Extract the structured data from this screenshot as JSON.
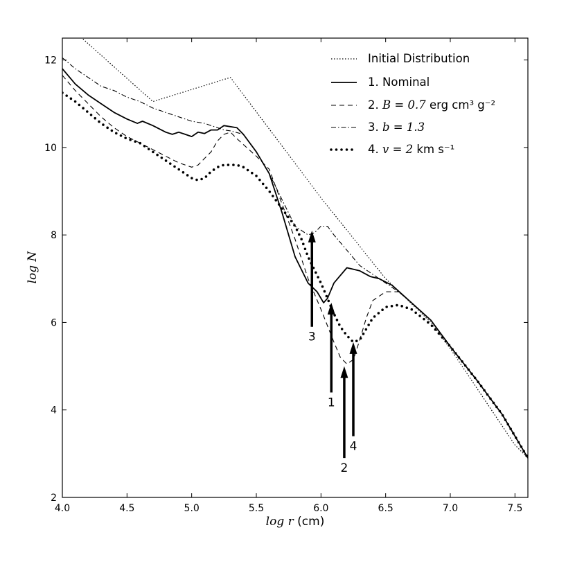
{
  "chart_data": {
    "type": "line",
    "title": "",
    "xlabel": "log r (cm)",
    "ylabel": "log N",
    "xlim": [
      4.0,
      7.6
    ],
    "ylim": [
      2,
      12.5
    ],
    "xticks": [
      "4.0",
      "4.5",
      "5.0",
      "5.5",
      "6.0",
      "6.5",
      "7.0",
      "7.5"
    ],
    "yticks": [
      "2",
      "4",
      "6",
      "8",
      "10",
      "12"
    ],
    "grid": false,
    "legend_position": "top-right",
    "series": [
      {
        "name": "Initial Distribution",
        "style": "dotted",
        "points": [
          [
            4.0,
            12.9
          ],
          [
            4.7,
            11.05
          ],
          [
            5.3,
            11.6
          ],
          [
            6.0,
            8.85
          ],
          [
            6.5,
            7.0
          ],
          [
            6.85,
            6.0
          ],
          [
            7.0,
            5.4
          ],
          [
            7.5,
            3.2
          ],
          [
            7.6,
            2.9
          ]
        ]
      },
      {
        "name": "1. Nominal",
        "style": "solid",
        "points": [
          [
            4.0,
            11.8
          ],
          [
            4.1,
            11.45
          ],
          [
            4.2,
            11.2
          ],
          [
            4.3,
            11.0
          ],
          [
            4.4,
            10.8
          ],
          [
            4.5,
            10.65
          ],
          [
            4.58,
            10.55
          ],
          [
            4.62,
            10.6
          ],
          [
            4.7,
            10.5
          ],
          [
            4.8,
            10.35
          ],
          [
            4.85,
            10.3
          ],
          [
            4.9,
            10.35
          ],
          [
            4.95,
            10.3
          ],
          [
            5.0,
            10.25
          ],
          [
            5.05,
            10.35
          ],
          [
            5.1,
            10.32
          ],
          [
            5.15,
            10.4
          ],
          [
            5.2,
            10.4
          ],
          [
            5.25,
            10.5
          ],
          [
            5.35,
            10.45
          ],
          [
            5.4,
            10.3
          ],
          [
            5.5,
            9.9
          ],
          [
            5.6,
            9.4
          ],
          [
            5.7,
            8.5
          ],
          [
            5.8,
            7.5
          ],
          [
            5.9,
            6.9
          ],
          [
            5.97,
            6.7
          ],
          [
            6.02,
            6.45
          ],
          [
            6.05,
            6.55
          ],
          [
            6.1,
            6.9
          ],
          [
            6.2,
            7.25
          ],
          [
            6.3,
            7.18
          ],
          [
            6.38,
            7.05
          ],
          [
            6.45,
            7.0
          ],
          [
            6.55,
            6.85
          ],
          [
            6.7,
            6.45
          ],
          [
            6.85,
            6.05
          ],
          [
            7.0,
            5.45
          ],
          [
            7.2,
            4.7
          ],
          [
            7.4,
            3.9
          ],
          [
            7.6,
            2.9
          ]
        ]
      },
      {
        "name": "2. B = 0.7 erg cm3 g-2",
        "style": "dashed",
        "points": [
          [
            4.0,
            11.65
          ],
          [
            4.1,
            11.3
          ],
          [
            4.2,
            11.0
          ],
          [
            4.3,
            10.7
          ],
          [
            4.4,
            10.45
          ],
          [
            4.5,
            10.25
          ],
          [
            4.6,
            10.1
          ],
          [
            4.7,
            9.95
          ],
          [
            4.8,
            9.8
          ],
          [
            4.9,
            9.65
          ],
          [
            5.0,
            9.55
          ],
          [
            5.05,
            9.6
          ],
          [
            5.1,
            9.75
          ],
          [
            5.15,
            9.9
          ],
          [
            5.2,
            10.15
          ],
          [
            5.25,
            10.3
          ],
          [
            5.3,
            10.35
          ],
          [
            5.35,
            10.2
          ],
          [
            5.5,
            9.8
          ],
          [
            5.6,
            9.5
          ],
          [
            5.7,
            8.7
          ],
          [
            5.8,
            7.9
          ],
          [
            5.9,
            7.0
          ],
          [
            6.0,
            6.3
          ],
          [
            6.1,
            5.55
          ],
          [
            6.15,
            5.2
          ],
          [
            6.2,
            5.05
          ],
          [
            6.25,
            5.15
          ],
          [
            6.3,
            5.6
          ],
          [
            6.35,
            6.1
          ],
          [
            6.4,
            6.5
          ],
          [
            6.5,
            6.7
          ],
          [
            6.6,
            6.7
          ],
          [
            6.7,
            6.45
          ],
          [
            6.85,
            6.05
          ],
          [
            7.0,
            5.45
          ],
          [
            7.2,
            4.7
          ],
          [
            7.4,
            3.9
          ],
          [
            7.6,
            2.9
          ]
        ]
      },
      {
        "name": "3. b = 1.3",
        "style": "dashdot",
        "points": [
          [
            4.0,
            12.05
          ],
          [
            4.1,
            11.8
          ],
          [
            4.2,
            11.6
          ],
          [
            4.3,
            11.4
          ],
          [
            4.4,
            11.3
          ],
          [
            4.5,
            11.15
          ],
          [
            4.6,
            11.05
          ],
          [
            4.7,
            10.9
          ],
          [
            4.8,
            10.8
          ],
          [
            4.9,
            10.7
          ],
          [
            5.0,
            10.6
          ],
          [
            5.1,
            10.55
          ],
          [
            5.2,
            10.45
          ],
          [
            5.25,
            10.4
          ],
          [
            5.3,
            10.38
          ],
          [
            5.4,
            10.3
          ],
          [
            5.5,
            9.9
          ],
          [
            5.6,
            9.4
          ],
          [
            5.7,
            8.8
          ],
          [
            5.8,
            8.2
          ],
          [
            5.9,
            8.0
          ],
          [
            5.95,
            8.05
          ],
          [
            6.0,
            8.2
          ],
          [
            6.05,
            8.2
          ],
          [
            6.1,
            8.0
          ],
          [
            6.2,
            7.65
          ],
          [
            6.3,
            7.3
          ],
          [
            6.4,
            7.1
          ],
          [
            6.5,
            6.9
          ],
          [
            6.6,
            6.7
          ],
          [
            6.7,
            6.45
          ],
          [
            6.85,
            6.05
          ],
          [
            7.0,
            5.45
          ],
          [
            7.2,
            4.7
          ],
          [
            7.4,
            3.9
          ],
          [
            7.6,
            2.9
          ]
        ]
      },
      {
        "name": "4. v = 2 km s-1",
        "style": "dotted-heavy",
        "points": [
          [
            4.0,
            11.25
          ],
          [
            4.1,
            11.05
          ],
          [
            4.2,
            10.8
          ],
          [
            4.3,
            10.55
          ],
          [
            4.4,
            10.35
          ],
          [
            4.5,
            10.2
          ],
          [
            4.6,
            10.1
          ],
          [
            4.7,
            9.9
          ],
          [
            4.8,
            9.7
          ],
          [
            4.9,
            9.5
          ],
          [
            5.0,
            9.3
          ],
          [
            5.05,
            9.25
          ],
          [
            5.1,
            9.3
          ],
          [
            5.15,
            9.45
          ],
          [
            5.2,
            9.55
          ],
          [
            5.25,
            9.6
          ],
          [
            5.3,
            9.6
          ],
          [
            5.35,
            9.6
          ],
          [
            5.4,
            9.55
          ],
          [
            5.5,
            9.35
          ],
          [
            5.6,
            9.0
          ],
          [
            5.7,
            8.6
          ],
          [
            5.8,
            8.2
          ],
          [
            5.85,
            7.9
          ],
          [
            5.9,
            7.5
          ],
          [
            5.95,
            7.2
          ],
          [
            6.0,
            6.9
          ],
          [
            6.05,
            6.55
          ],
          [
            6.1,
            6.2
          ],
          [
            6.15,
            5.9
          ],
          [
            6.2,
            5.7
          ],
          [
            6.25,
            5.55
          ],
          [
            6.3,
            5.6
          ],
          [
            6.35,
            5.85
          ],
          [
            6.4,
            6.1
          ],
          [
            6.5,
            6.35
          ],
          [
            6.6,
            6.4
          ],
          [
            6.7,
            6.3
          ],
          [
            6.85,
            5.95
          ],
          [
            7.0,
            5.45
          ],
          [
            7.2,
            4.7
          ],
          [
            7.4,
            3.9
          ],
          [
            7.6,
            2.9
          ]
        ]
      }
    ],
    "legend": [
      {
        "number": "",
        "text": "Initial Distribution"
      },
      {
        "number": "1.",
        "text": "Nominal"
      },
      {
        "number": "2.",
        "math": "B = 0.7",
        "text": "erg cm³ g⁻²"
      },
      {
        "number": "3.",
        "math": "b = 1.3",
        "text": ""
      },
      {
        "number": "4.",
        "math": "v = 2",
        "text": "km s⁻¹"
      }
    ],
    "annotations": [
      {
        "label": "3",
        "x": 5.93,
        "y_tail": 5.9,
        "y_head": 8.1
      },
      {
        "label": "1",
        "x": 6.08,
        "y_tail": 4.4,
        "y_head": 6.45
      },
      {
        "label": "2",
        "x": 6.18,
        "y_tail": 2.9,
        "y_head": 5.0
      },
      {
        "label": "4",
        "x": 6.25,
        "y_tail": 3.4,
        "y_head": 5.55
      }
    ]
  }
}
